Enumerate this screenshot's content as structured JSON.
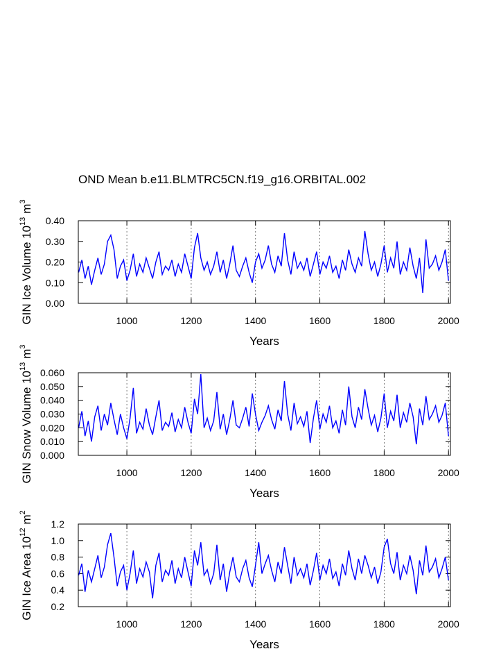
{
  "chart_data": [
    {
      "type": "line",
      "title": "OND Mean b.e11.BLMTRC5CN.f19_g16.ORBITAL.002",
      "ylabel": {
        "base": "GIN Ice Volume 10",
        "power": "13",
        "unit": "m",
        "unit_power": "3"
      },
      "xlabel": "Years",
      "xgrid": true,
      "xlim": [
        849,
        2006
      ],
      "xticks": [
        1000,
        1200,
        1400,
        1600,
        1800,
        2000
      ],
      "ylim": [
        0,
        0.4
      ],
      "yticks": [
        {
          "value": 0,
          "label": "0.00"
        },
        {
          "value": 0.1,
          "label": "0.10"
        },
        {
          "value": 0.2,
          "label": "0.20"
        },
        {
          "value": 0.3,
          "label": "0.30"
        },
        {
          "value": 0.4,
          "label": "0.40"
        }
      ],
      "color": "#0000ff",
      "x": [
        850,
        860,
        870,
        880,
        890,
        900,
        910,
        920,
        930,
        940,
        950,
        960,
        970,
        980,
        990,
        1000,
        1010,
        1020,
        1030,
        1040,
        1050,
        1060,
        1070,
        1080,
        1090,
        1100,
        1110,
        1120,
        1130,
        1140,
        1150,
        1160,
        1170,
        1180,
        1190,
        1200,
        1210,
        1220,
        1230,
        1240,
        1250,
        1260,
        1270,
        1280,
        1290,
        1300,
        1310,
        1320,
        1330,
        1340,
        1350,
        1360,
        1370,
        1380,
        1390,
        1400,
        1410,
        1420,
        1430,
        1440,
        1450,
        1460,
        1470,
        1480,
        1490,
        1500,
        1510,
        1520,
        1530,
        1540,
        1550,
        1560,
        1570,
        1580,
        1590,
        1600,
        1610,
        1620,
        1630,
        1640,
        1650,
        1660,
        1670,
        1680,
        1690,
        1700,
        1710,
        1720,
        1730,
        1740,
        1750,
        1760,
        1770,
        1780,
        1790,
        1800,
        1810,
        1820,
        1830,
        1840,
        1850,
        1860,
        1870,
        1880,
        1890,
        1900,
        1910,
        1920,
        1930,
        1940,
        1950,
        1960,
        1970,
        1980,
        1990,
        2000
      ],
      "values": [
        0.15,
        0.21,
        0.12,
        0.18,
        0.09,
        0.16,
        0.22,
        0.14,
        0.19,
        0.3,
        0.33,
        0.26,
        0.12,
        0.18,
        0.21,
        0.11,
        0.16,
        0.24,
        0.13,
        0.19,
        0.15,
        0.22,
        0.17,
        0.12,
        0.2,
        0.25,
        0.14,
        0.18,
        0.16,
        0.21,
        0.13,
        0.19,
        0.15,
        0.24,
        0.18,
        0.12,
        0.27,
        0.34,
        0.22,
        0.16,
        0.2,
        0.14,
        0.18,
        0.25,
        0.15,
        0.21,
        0.12,
        0.19,
        0.28,
        0.16,
        0.13,
        0.18,
        0.22,
        0.15,
        0.1,
        0.2,
        0.24,
        0.17,
        0.21,
        0.28,
        0.19,
        0.15,
        0.23,
        0.18,
        0.34,
        0.21,
        0.14,
        0.25,
        0.17,
        0.2,
        0.16,
        0.22,
        0.13,
        0.19,
        0.25,
        0.14,
        0.2,
        0.17,
        0.23,
        0.15,
        0.18,
        0.12,
        0.21,
        0.16,
        0.26,
        0.19,
        0.15,
        0.22,
        0.18,
        0.35,
        0.24,
        0.16,
        0.2,
        0.13,
        0.19,
        0.28,
        0.15,
        0.22,
        0.17,
        0.3,
        0.14,
        0.2,
        0.16,
        0.27,
        0.18,
        0.12,
        0.22,
        0.05,
        0.31,
        0.17,
        0.19,
        0.23,
        0.16,
        0.2,
        0.26,
        0.11
      ]
    },
    {
      "type": "line",
      "ylabel": {
        "base": "GIN Snow Volume 10",
        "power": "13",
        "unit": "m",
        "unit_power": "3"
      },
      "xlabel": "Years",
      "xgrid": true,
      "xlim": [
        849,
        2006
      ],
      "xticks": [
        1000,
        1200,
        1400,
        1600,
        1800,
        2000
      ],
      "ylim": [
        0,
        0.06
      ],
      "yticks": [
        {
          "value": 0,
          "label": "0.000"
        },
        {
          "value": 0.01,
          "label": "0.010"
        },
        {
          "value": 0.02,
          "label": "0.020"
        },
        {
          "value": 0.03,
          "label": "0.030"
        },
        {
          "value": 0.04,
          "label": "0.040"
        },
        {
          "value": 0.05,
          "label": "0.050"
        },
        {
          "value": 0.06,
          "label": "0.060"
        }
      ],
      "color": "#0000ff",
      "x": [
        850,
        860,
        870,
        880,
        890,
        900,
        910,
        920,
        930,
        940,
        950,
        960,
        970,
        980,
        990,
        1000,
        1010,
        1020,
        1030,
        1040,
        1050,
        1060,
        1070,
        1080,
        1090,
        1100,
        1110,
        1120,
        1130,
        1140,
        1150,
        1160,
        1170,
        1180,
        1190,
        1200,
        1210,
        1220,
        1230,
        1240,
        1250,
        1260,
        1270,
        1280,
        1290,
        1300,
        1310,
        1320,
        1330,
        1340,
        1350,
        1360,
        1370,
        1380,
        1390,
        1400,
        1410,
        1420,
        1430,
        1440,
        1450,
        1460,
        1470,
        1480,
        1490,
        1500,
        1510,
        1520,
        1530,
        1540,
        1550,
        1560,
        1570,
        1580,
        1590,
        1600,
        1610,
        1620,
        1630,
        1640,
        1650,
        1660,
        1670,
        1680,
        1690,
        1700,
        1710,
        1720,
        1730,
        1740,
        1750,
        1760,
        1770,
        1780,
        1790,
        1800,
        1810,
        1820,
        1830,
        1840,
        1850,
        1860,
        1870,
        1880,
        1890,
        1900,
        1910,
        1920,
        1930,
        1940,
        1950,
        1960,
        1970,
        1980,
        1990,
        2000
      ],
      "values": [
        0.02,
        0.032,
        0.014,
        0.025,
        0.01,
        0.028,
        0.036,
        0.018,
        0.03,
        0.022,
        0.038,
        0.026,
        0.015,
        0.03,
        0.02,
        0.012,
        0.027,
        0.049,
        0.016,
        0.024,
        0.019,
        0.034,
        0.022,
        0.015,
        0.028,
        0.04,
        0.018,
        0.024,
        0.021,
        0.031,
        0.017,
        0.026,
        0.02,
        0.035,
        0.024,
        0.016,
        0.041,
        0.03,
        0.059,
        0.02,
        0.027,
        0.018,
        0.025,
        0.046,
        0.019,
        0.03,
        0.015,
        0.026,
        0.04,
        0.022,
        0.02,
        0.027,
        0.035,
        0.021,
        0.045,
        0.03,
        0.018,
        0.024,
        0.029,
        0.036,
        0.026,
        0.019,
        0.033,
        0.025,
        0.054,
        0.03,
        0.018,
        0.038,
        0.023,
        0.028,
        0.021,
        0.032,
        0.009,
        0.027,
        0.04,
        0.019,
        0.03,
        0.024,
        0.036,
        0.02,
        0.025,
        0.016,
        0.033,
        0.022,
        0.05,
        0.028,
        0.02,
        0.035,
        0.026,
        0.048,
        0.034,
        0.022,
        0.029,
        0.017,
        0.027,
        0.045,
        0.02,
        0.032,
        0.025,
        0.044,
        0.02,
        0.031,
        0.024,
        0.038,
        0.028,
        0.008,
        0.034,
        0.022,
        0.043,
        0.026,
        0.03,
        0.036,
        0.024,
        0.029,
        0.038,
        0.014
      ]
    },
    {
      "type": "line",
      "ylabel": {
        "base": "GIN Ice Area 10",
        "power": "12",
        "unit": "m",
        "unit_power": "2"
      },
      "xlabel": "Years",
      "xgrid": true,
      "xlim": [
        849,
        2006
      ],
      "xticks": [
        1000,
        1200,
        1400,
        1600,
        1800,
        2000
      ],
      "ylim": [
        0.2,
        1.2
      ],
      "yticks": [
        0.2,
        0.4,
        0.6,
        0.8,
        {
          "value": 1,
          "label": "1.0"
        },
        1.2
      ],
      "color": "#0000ff",
      "x": [
        850,
        860,
        870,
        880,
        890,
        900,
        910,
        920,
        930,
        940,
        950,
        960,
        970,
        980,
        990,
        1000,
        1010,
        1020,
        1030,
        1040,
        1050,
        1060,
        1070,
        1080,
        1090,
        1100,
        1110,
        1120,
        1130,
        1140,
        1150,
        1160,
        1170,
        1180,
        1190,
        1200,
        1210,
        1220,
        1230,
        1240,
        1250,
        1260,
        1270,
        1280,
        1290,
        1300,
        1310,
        1320,
        1330,
        1340,
        1350,
        1360,
        1370,
        1380,
        1390,
        1400,
        1410,
        1420,
        1430,
        1440,
        1450,
        1460,
        1470,
        1480,
        1490,
        1500,
        1510,
        1520,
        1530,
        1540,
        1550,
        1560,
        1570,
        1580,
        1590,
        1600,
        1610,
        1620,
        1630,
        1640,
        1650,
        1660,
        1670,
        1680,
        1690,
        1700,
        1710,
        1720,
        1730,
        1740,
        1750,
        1760,
        1770,
        1780,
        1790,
        1800,
        1810,
        1820,
        1830,
        1840,
        1850,
        1860,
        1870,
        1880,
        1890,
        1900,
        1910,
        1920,
        1930,
        1940,
        1950,
        1960,
        1970,
        1980,
        1990,
        2000
      ],
      "values": [
        0.58,
        0.72,
        0.38,
        0.64,
        0.5,
        0.66,
        0.82,
        0.55,
        0.68,
        0.95,
        1.09,
        0.8,
        0.45,
        0.62,
        0.7,
        0.4,
        0.6,
        0.88,
        0.48,
        0.66,
        0.56,
        0.74,
        0.62,
        0.3,
        0.7,
        0.85,
        0.5,
        0.64,
        0.58,
        0.76,
        0.48,
        0.66,
        0.55,
        0.8,
        0.62,
        0.45,
        0.88,
        0.7,
        0.98,
        0.58,
        0.65,
        0.48,
        0.6,
        0.95,
        0.52,
        0.72,
        0.38,
        0.62,
        0.8,
        0.56,
        0.5,
        0.66,
        0.76,
        0.55,
        0.44,
        0.7,
        0.98,
        0.6,
        0.72,
        0.82,
        0.64,
        0.5,
        0.74,
        0.6,
        0.92,
        0.7,
        0.48,
        0.8,
        0.58,
        0.66,
        0.55,
        0.72,
        0.46,
        0.64,
        0.85,
        0.52,
        0.7,
        0.6,
        0.78,
        0.54,
        0.62,
        0.45,
        0.72,
        0.58,
        0.88,
        0.66,
        0.52,
        0.78,
        0.6,
        0.82,
        0.7,
        0.55,
        0.68,
        0.48,
        0.62,
        0.92,
        1.02,
        0.72,
        0.6,
        0.86,
        0.52,
        0.7,
        0.6,
        0.82,
        0.64,
        0.35,
        0.76,
        0.58,
        0.94,
        0.62,
        0.68,
        0.78,
        0.55,
        0.66,
        0.8,
        0.52
      ]
    }
  ]
}
